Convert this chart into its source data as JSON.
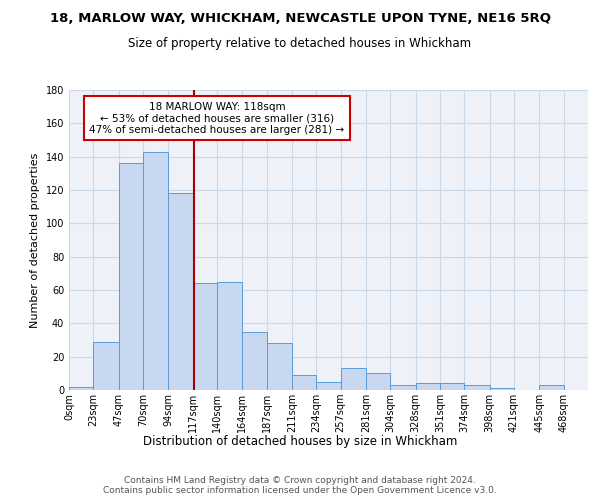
{
  "title": "18, MARLOW WAY, WHICKHAM, NEWCASTLE UPON TYNE, NE16 5RQ",
  "subtitle": "Size of property relative to detached houses in Whickham",
  "xlabel": "Distribution of detached houses by size in Whickham",
  "ylabel": "Number of detached properties",
  "bin_edges": [
    0,
    23,
    47,
    70,
    94,
    117,
    140,
    164,
    187,
    211,
    234,
    257,
    281,
    304,
    328,
    351,
    374,
    398,
    421,
    445,
    468
  ],
  "bin_labels": [
    "0sqm",
    "23sqm",
    "47sqm",
    "70sqm",
    "94sqm",
    "117sqm",
    "140sqm",
    "164sqm",
    "187sqm",
    "211sqm",
    "234sqm",
    "257sqm",
    "281sqm",
    "304sqm",
    "328sqm",
    "351sqm",
    "374sqm",
    "398sqm",
    "421sqm",
    "445sqm",
    "468sqm"
  ],
  "bar_heights": [
    2,
    29,
    136,
    143,
    118,
    64,
    65,
    35,
    28,
    9,
    5,
    13,
    10,
    3,
    4,
    4,
    3,
    1,
    0,
    3
  ],
  "bar_color": "#c8d8f0",
  "bar_edge_color": "#5b9bd5",
  "property_value": 118,
  "vline_color": "#aa0000",
  "annotation_line1": "18 MARLOW WAY: 118sqm",
  "annotation_line2": "← 53% of detached houses are smaller (316)",
  "annotation_line3": "47% of semi-detached houses are larger (281) →",
  "annotation_box_color": "#ffffff",
  "annotation_box_edge": "#cc0000",
  "ylim": [
    0,
    180
  ],
  "yticks": [
    0,
    20,
    40,
    60,
    80,
    100,
    120,
    140,
    160,
    180
  ],
  "grid_color": "#c8d8e8",
  "background_color": "#eef2f8",
  "footer_text": "Contains HM Land Registry data © Crown copyright and database right 2024.\nContains public sector information licensed under the Open Government Licence v3.0.",
  "title_fontsize": 9.5,
  "subtitle_fontsize": 8.5,
  "xlabel_fontsize": 8.5,
  "ylabel_fontsize": 8.0,
  "tick_fontsize": 7.0,
  "footer_fontsize": 6.5
}
